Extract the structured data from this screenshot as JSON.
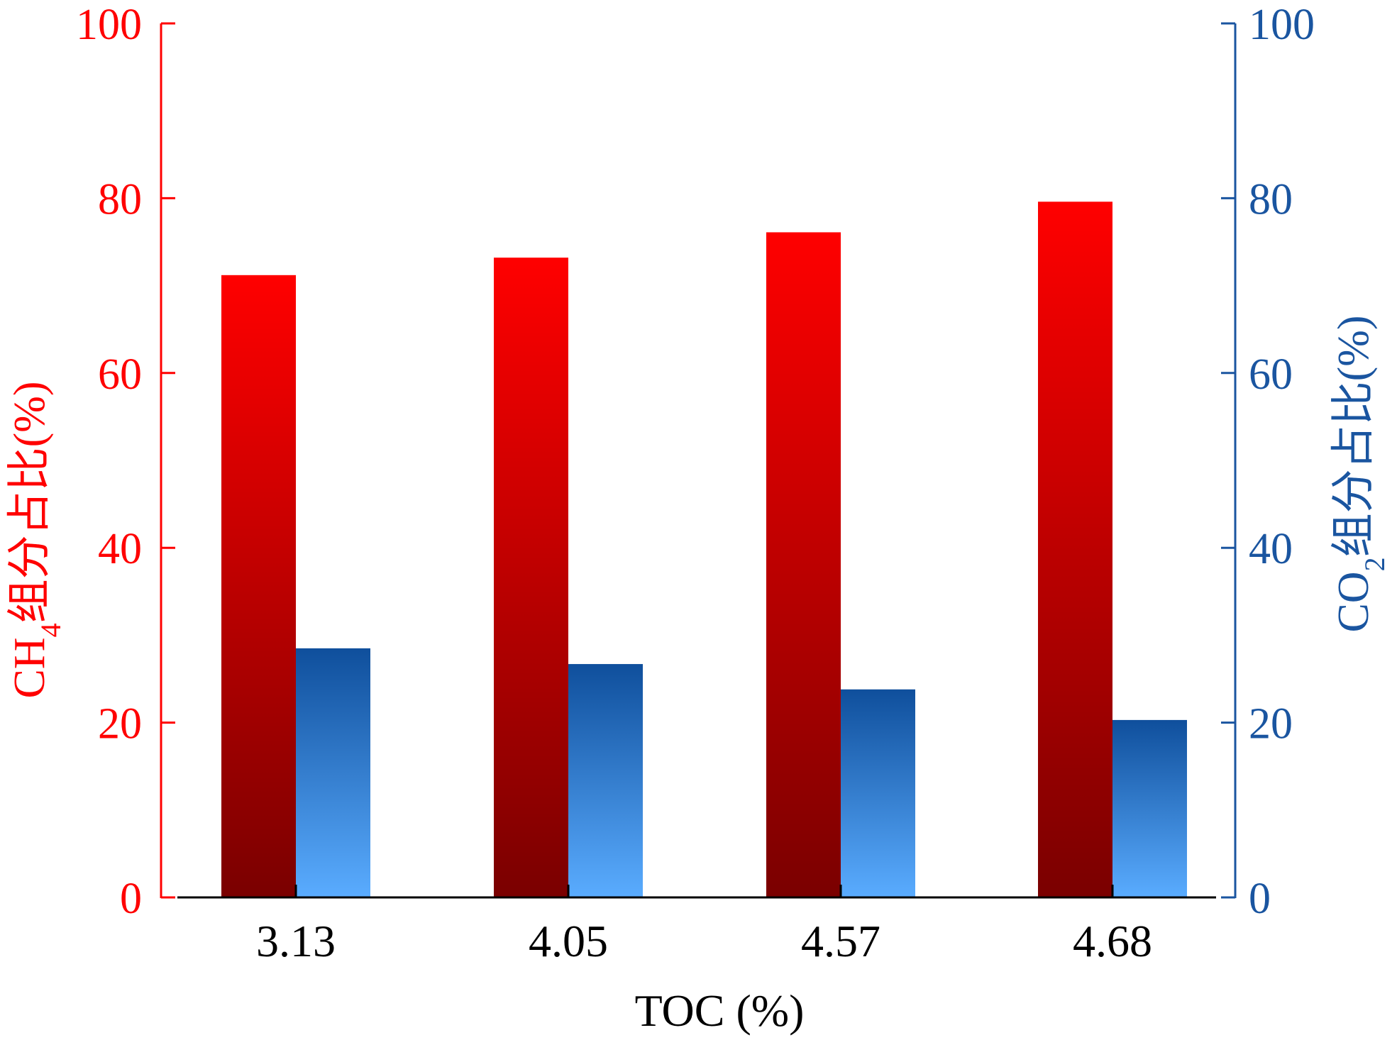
{
  "chart_data": {
    "type": "bar",
    "categories": [
      "3.13",
      "4.05",
      "4.57",
      "4.68"
    ],
    "series": [
      {
        "name": "CH4",
        "axis": "left",
        "values": [
          71.2,
          73.2,
          76.1,
          79.6
        ]
      },
      {
        "name": "CO2",
        "axis": "right",
        "values": [
          28.5,
          26.7,
          23.8,
          20.3
        ]
      }
    ],
    "xlabel": "TOC (%)",
    "ylabel_left": {
      "main": "CH",
      "sub": "4",
      "rest": "组分占比(%)"
    },
    "ylabel_right": {
      "main": "CO",
      "sub": "2",
      "rest": "组分占比(%)"
    },
    "ylim_left": [
      0,
      100
    ],
    "ylim_right": [
      0,
      100
    ],
    "yticks_left": [
      "0",
      "20",
      "40",
      "60",
      "80",
      "100"
    ],
    "yticks_right": [
      "0",
      "20",
      "40",
      "60",
      "80",
      "100"
    ],
    "grid": false,
    "colors": {
      "left_axis": "#ff0000",
      "right_axis": "#1a55a0",
      "ch4_bar_top": "#ff0000",
      "ch4_bar_bottom": "#7a0000",
      "co2_bar_top": "#0f4f9c",
      "co2_bar_bottom": "#5aacff",
      "x_axis": "#000000"
    }
  }
}
